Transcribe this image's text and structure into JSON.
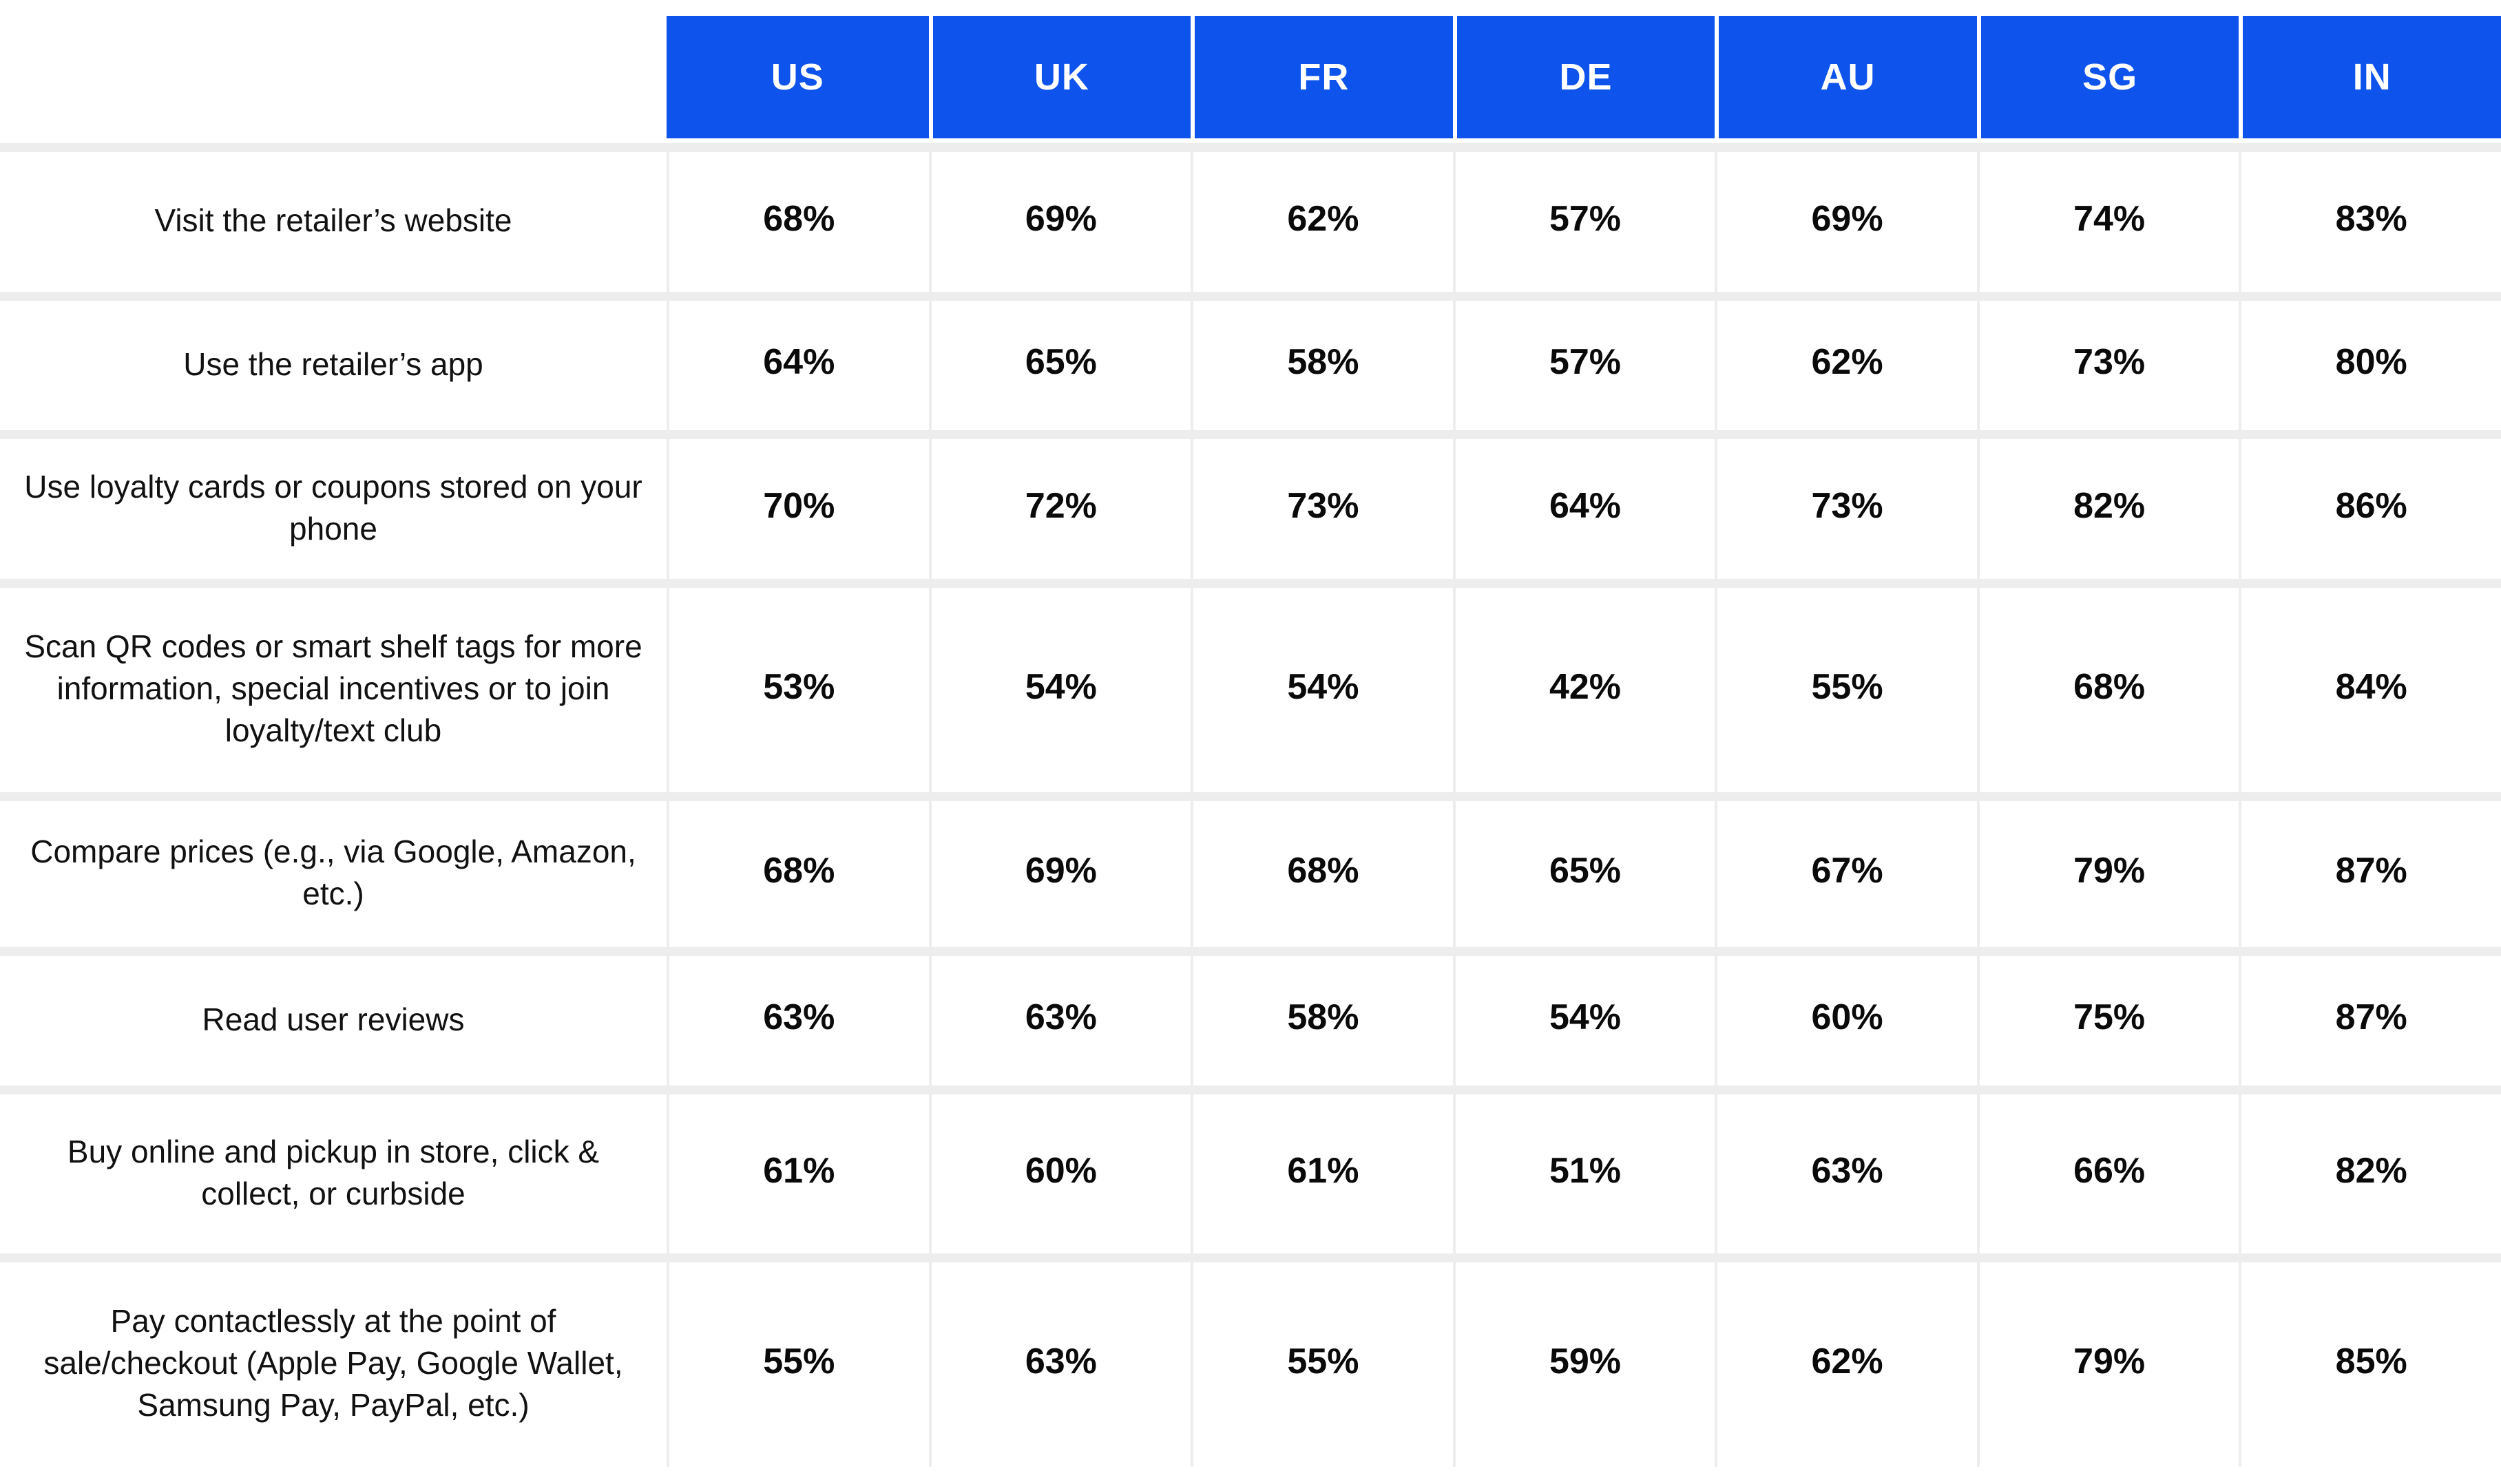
{
  "table": {
    "columns": [
      "US",
      "UK",
      "FR",
      "DE",
      "AU",
      "SG",
      "IN"
    ],
    "rows": [
      {
        "label": "Visit the retailer’s website",
        "values": [
          "68%",
          "69%",
          "62%",
          "57%",
          "69%",
          "74%",
          "83%"
        ]
      },
      {
        "label": "Use the retailer’s app",
        "values": [
          "64%",
          "65%",
          "58%",
          "57%",
          "62%",
          "73%",
          "80%"
        ]
      },
      {
        "label": "Use loyalty cards or coupons stored on your phone",
        "values": [
          "70%",
          "72%",
          "73%",
          "64%",
          "73%",
          "82%",
          "86%"
        ]
      },
      {
        "label": "Scan QR codes or smart shelf tags for more information, special incentives or to join loyalty/text club",
        "values": [
          "53%",
          "54%",
          "54%",
          "42%",
          "55%",
          "68%",
          "84%"
        ]
      },
      {
        "label": "Compare prices (e.g., via Google, Amazon, etc.)",
        "values": [
          "68%",
          "69%",
          "68%",
          "65%",
          "67%",
          "79%",
          "87%"
        ]
      },
      {
        "label": "Read user reviews",
        "values": [
          "63%",
          "63%",
          "58%",
          "54%",
          "60%",
          "75%",
          "87%"
        ]
      },
      {
        "label": "Buy online and pickup in store, click & collect, or curbside",
        "values": [
          "61%",
          "60%",
          "61%",
          "51%",
          "63%",
          "66%",
          "82%"
        ]
      },
      {
        "label": "Pay contactlessly at the point of sale/checkout (Apple Pay, Google Wallet, Samsung Pay, PayPal, etc.)",
        "values": [
          "55%",
          "63%",
          "55%",
          "59%",
          "62%",
          "79%",
          "85%"
        ]
      }
    ]
  },
  "colors": {
    "header_background": "#0D53EC",
    "header_text": "#FFFFFF",
    "gridline": "#EDEDED",
    "value_text": "#0A0A0A",
    "label_text": "#111111"
  },
  "chart_data": {
    "type": "table",
    "title": "",
    "unit": "%",
    "categories": [
      "US",
      "UK",
      "FR",
      "DE",
      "AU",
      "SG",
      "IN"
    ],
    "series": [
      {
        "name": "Visit the retailer’s website",
        "values": [
          68,
          69,
          62,
          57,
          69,
          74,
          83
        ]
      },
      {
        "name": "Use the retailer’s app",
        "values": [
          64,
          65,
          58,
          57,
          62,
          73,
          80
        ]
      },
      {
        "name": "Use loyalty cards or coupons stored on your phone",
        "values": [
          70,
          72,
          73,
          64,
          73,
          82,
          86
        ]
      },
      {
        "name": "Scan QR codes or smart shelf tags for more information, special incentives or to join loyalty/text club",
        "values": [
          53,
          54,
          54,
          42,
          55,
          68,
          84
        ]
      },
      {
        "name": "Compare prices (e.g., via Google, Amazon, etc.)",
        "values": [
          68,
          69,
          68,
          65,
          67,
          79,
          87
        ]
      },
      {
        "name": "Read user reviews",
        "values": [
          63,
          63,
          58,
          54,
          60,
          75,
          87
        ]
      },
      {
        "name": "Buy online and pickup in store, click & collect, or curbside",
        "values": [
          61,
          60,
          61,
          51,
          63,
          66,
          82
        ]
      },
      {
        "name": "Pay contactlessly at the point of sale/checkout (Apple Pay, Google Wallet, Samsung Pay, PayPal, etc.)",
        "values": [
          55,
          63,
          55,
          59,
          62,
          79,
          85
        ]
      }
    ],
    "layout": {
      "header_position": "top",
      "grid": true,
      "legend": "none"
    }
  }
}
